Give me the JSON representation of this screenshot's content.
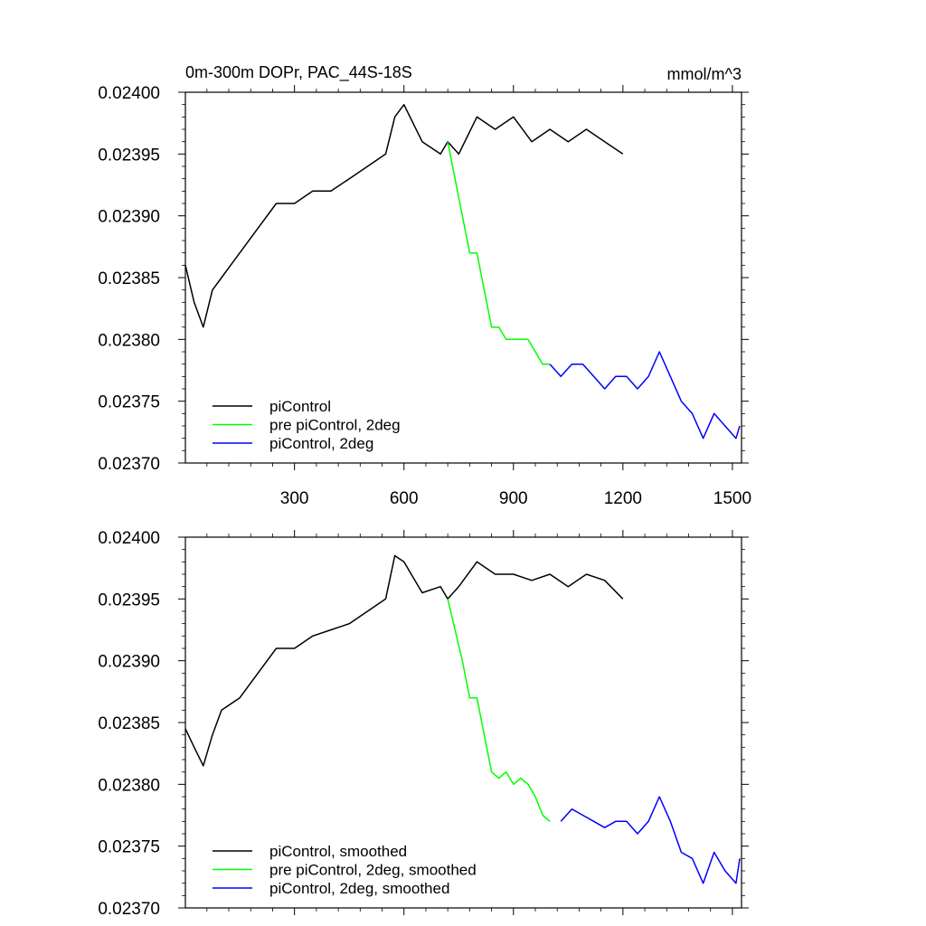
{
  "chart_data": [
    {
      "type": "line",
      "title": "0m-300m DOPr, PAC_44S-18S",
      "units": "mmol/m^3",
      "xlabel": "",
      "ylabel": "",
      "xlim": [
        1,
        1525
      ],
      "ylim": [
        0.0237,
        0.024
      ],
      "x_ticks": [
        300,
        600,
        900,
        1200,
        1500
      ],
      "x_tick_labels": [
        "300",
        "600",
        "900",
        "1200",
        "1500"
      ],
      "y_ticks": [
        0.0237,
        0.02375,
        0.0238,
        0.02385,
        0.0239,
        0.02395,
        0.024
      ],
      "y_tick_labels": [
        "0.02370",
        "0.02375",
        "0.02380",
        "0.02385",
        "0.02390",
        "0.02395",
        "0.02400"
      ],
      "legend_position": "bottom-left",
      "series": [
        {
          "name": "piControl",
          "color": "#000000",
          "x": [
            1,
            25,
            50,
            75,
            100,
            150,
            200,
            250,
            300,
            350,
            400,
            450,
            500,
            550,
            575,
            600,
            650,
            700,
            720,
            750,
            800,
            850,
            900,
            950,
            1000,
            1050,
            1100,
            1150,
            1200
          ],
          "y": [
            0.02386,
            0.02383,
            0.02381,
            0.02384,
            0.02385,
            0.02387,
            0.02389,
            0.02391,
            0.02391,
            0.02392,
            0.02392,
            0.02393,
            0.02394,
            0.02395,
            0.02398,
            0.02399,
            0.02396,
            0.02395,
            0.02396,
            0.02395,
            0.02398,
            0.02397,
            0.02398,
            0.02396,
            0.02397,
            0.02396,
            0.02397,
            0.02396,
            0.02395
          ]
        },
        {
          "name": "pre piControl, 2deg",
          "color": "#00ff00",
          "x": [
            720,
            740,
            760,
            780,
            800,
            820,
            840,
            860,
            880,
            900,
            920,
            940,
            960,
            980,
            1000
          ],
          "y": [
            0.02396,
            0.02393,
            0.0239,
            0.02387,
            0.02387,
            0.02384,
            0.02381,
            0.02381,
            0.0238,
            0.0238,
            0.0238,
            0.0238,
            0.02379,
            0.02378,
            0.02378
          ]
        },
        {
          "name": "piControl, 2deg",
          "color": "#0000ff",
          "x": [
            1000,
            1030,
            1060,
            1090,
            1120,
            1150,
            1180,
            1210,
            1240,
            1270,
            1300,
            1330,
            1360,
            1390,
            1420,
            1450,
            1480,
            1510,
            1520
          ],
          "y": [
            0.02378,
            0.02377,
            0.02378,
            0.02378,
            0.02377,
            0.02376,
            0.02377,
            0.02377,
            0.02376,
            0.02377,
            0.02379,
            0.02377,
            0.02375,
            0.02374,
            0.02372,
            0.02374,
            0.02373,
            0.02372,
            0.02373
          ]
        }
      ]
    },
    {
      "type": "line",
      "title": "",
      "xlabel": "",
      "ylabel": "",
      "xlim": [
        1,
        1525
      ],
      "ylim": [
        0.0237,
        0.024
      ],
      "x_ticks": [
        300,
        600,
        900,
        1200,
        1500
      ],
      "y_ticks": [
        0.0237,
        0.02375,
        0.0238,
        0.02385,
        0.0239,
        0.02395,
        0.024
      ],
      "y_tick_labels": [
        "0.02370",
        "0.02375",
        "0.02380",
        "0.02385",
        "0.02390",
        "0.02395",
        "0.02400"
      ],
      "legend_position": "bottom-left",
      "series": [
        {
          "name": "piControl, smoothed",
          "color": "#000000",
          "x": [
            1,
            25,
            50,
            75,
            100,
            150,
            200,
            250,
            300,
            350,
            400,
            450,
            500,
            550,
            575,
            600,
            650,
            700,
            720,
            750,
            800,
            850,
            900,
            950,
            1000,
            1050,
            1100,
            1150,
            1200
          ],
          "y": [
            0.023845,
            0.02383,
            0.023815,
            0.02384,
            0.02386,
            0.02387,
            0.02389,
            0.02391,
            0.02391,
            0.02392,
            0.023925,
            0.02393,
            0.02394,
            0.02395,
            0.023985,
            0.02398,
            0.023955,
            0.02396,
            0.02395,
            0.02396,
            0.02398,
            0.02397,
            0.02397,
            0.023965,
            0.02397,
            0.02396,
            0.02397,
            0.023965,
            0.02395
          ]
        },
        {
          "name": "pre piControl, 2deg, smoothed",
          "color": "#00ff00",
          "x": [
            720,
            740,
            760,
            780,
            800,
            820,
            840,
            860,
            880,
            900,
            920,
            940,
            960,
            980,
            1000
          ],
          "y": [
            0.02395,
            0.023925,
            0.0239,
            0.02387,
            0.02387,
            0.02384,
            0.02381,
            0.023805,
            0.02381,
            0.0238,
            0.023805,
            0.0238,
            0.02379,
            0.023775,
            0.02377
          ]
        },
        {
          "name": "piControl, 2deg, smoothed",
          "color": "#0000ff",
          "x": [
            1030,
            1060,
            1090,
            1120,
            1150,
            1180,
            1210,
            1240,
            1270,
            1300,
            1330,
            1360,
            1390,
            1420,
            1450,
            1480,
            1510,
            1520
          ],
          "y": [
            0.02377,
            0.02378,
            0.023775,
            0.02377,
            0.023765,
            0.02377,
            0.02377,
            0.02376,
            0.02377,
            0.02379,
            0.02377,
            0.023745,
            0.02374,
            0.02372,
            0.023745,
            0.02373,
            0.02372,
            0.02374
          ]
        }
      ]
    }
  ]
}
